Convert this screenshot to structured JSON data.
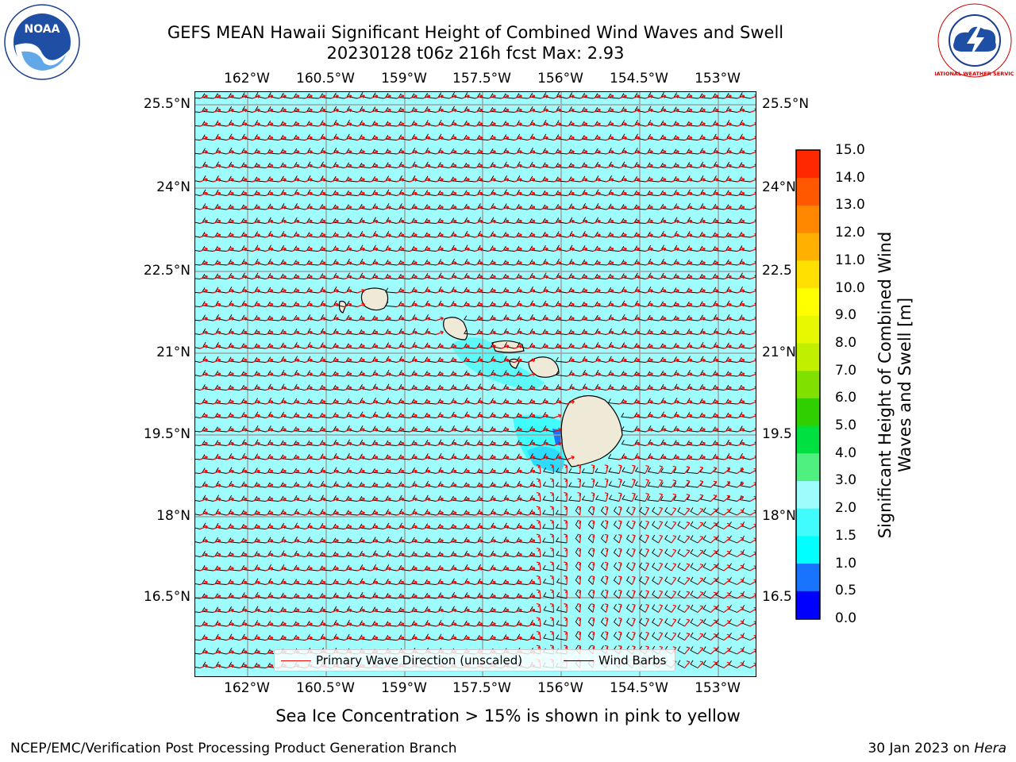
{
  "title": {
    "line1": "GEFS MEAN Hawaii Significant Height of Combined Wind Waves and Swell",
    "line2": "20230128 t06z 216h fcst   Max: 2.93"
  },
  "logos": {
    "left": "NOAA",
    "right": "NATIONAL WEATHER SERVICE"
  },
  "map": {
    "lon_labels": [
      "162°W",
      "160.5°W",
      "159°W",
      "157.5°W",
      "156°W",
      "154.5°W",
      "153°W"
    ],
    "lat_labels_left": [
      "25.5°N",
      "24°N",
      "22.5°N",
      "21°N",
      "19.5°N",
      "18°N",
      "16.5°N"
    ],
    "lat_labels_right": [
      "25.5°N",
      "24°N",
      "22.5",
      "21°N",
      "19.5",
      "18°N",
      "16.5"
    ],
    "ocean_color": "#9ffcfc",
    "land_color": "#efe9d7",
    "wave_arrow_color": "#ff0000",
    "barb_color": "#000000",
    "islands": [
      "Kauai",
      "Niihau",
      "Oahu",
      "Molokai",
      "Lanai",
      "Maui",
      "Hawaii"
    ]
  },
  "legend": {
    "wave_label": "Primary Wave Direction (unscaled)",
    "barb_label": "Wind Barbs"
  },
  "colorbar": {
    "label": "Significant Height of Combined Wind Waves and Swell [m]",
    "ticks": [
      "0.0",
      "0.5",
      "1.0",
      "1.5",
      "2.0",
      "3.0",
      "4.0",
      "5.0",
      "6.0",
      "7.0",
      "8.0",
      "9.0",
      "10.0",
      "11.0",
      "12.0",
      "13.0",
      "14.0",
      "15.0"
    ],
    "colors": [
      "#0000ff",
      "#1874ff",
      "#00ffff",
      "#40fcfc",
      "#9ffcfc",
      "#50f080",
      "#00e040",
      "#30d000",
      "#80e000",
      "#c0f000",
      "#e8f800",
      "#ffff00",
      "#ffe000",
      "#ffb000",
      "#ff8800",
      "#ff5800",
      "#ff2800",
      "#ff0000"
    ]
  },
  "footer": {
    "note": "Sea Ice Concentration > 15% is shown in pink to yellow",
    "left": "NCEP/EMC/Verification Post Processing Product Generation Branch",
    "right_prefix": "30 Jan 2023 on ",
    "right_host": "Hera"
  }
}
